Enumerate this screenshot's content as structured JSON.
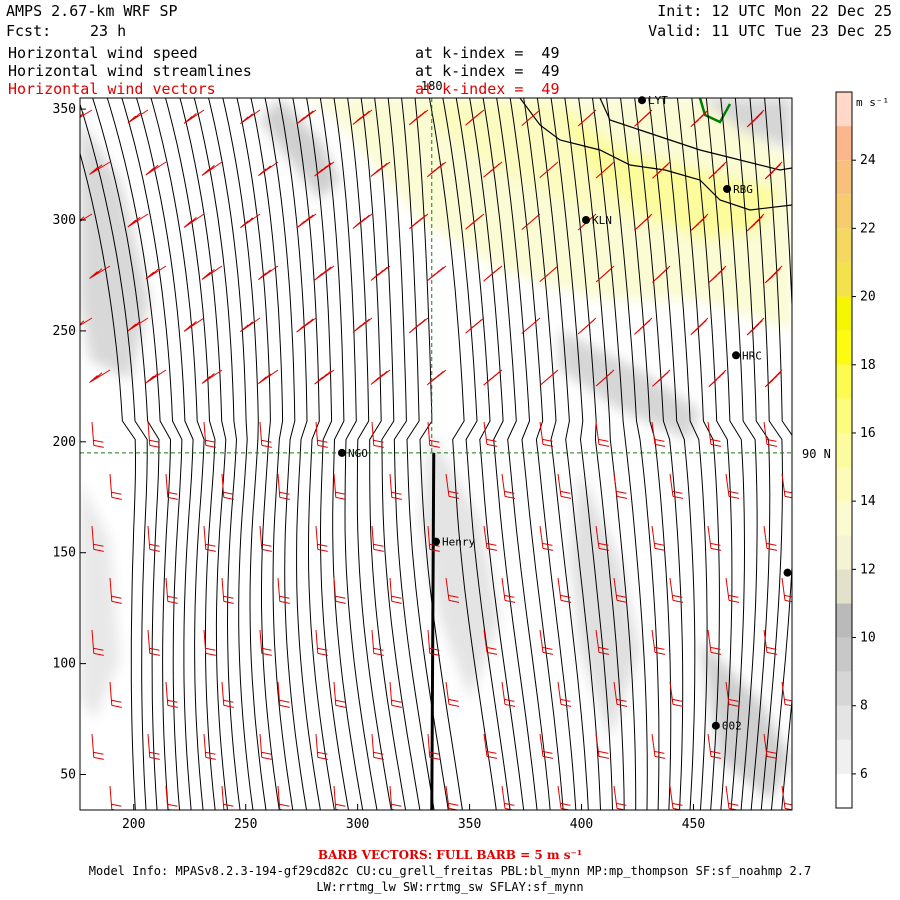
{
  "header": {
    "model": "AMPS 2.67-km WRF SP",
    "fcst_label": "Fcst:",
    "fcst_value": "23 h",
    "init": "Init: 12 UTC Mon 22 Dec 25",
    "valid": "Valid: 11 UTC Tue 23 Dec 25"
  },
  "fields": [
    {
      "name": "Horizontal wind speed",
      "level": "at k-index =  49",
      "color": "#000000"
    },
    {
      "name": "Horizontal wind streamlines",
      "level": "at k-index =  49",
      "color": "#000000"
    },
    {
      "name": "Horizontal wind vectors",
      "level": "at k-index =  49",
      "color": "#e00000"
    }
  ],
  "map": {
    "x_ticks": [
      "200",
      "250",
      "300",
      "350",
      "400",
      "450"
    ],
    "y_ticks": [
      "50",
      "100",
      "150",
      "200",
      "250",
      "300",
      "350"
    ],
    "x_range": [
      176,
      494
    ],
    "y_range": [
      34,
      355
    ],
    "meridian_label": "180",
    "latitude_label": "90 N",
    "pole_y": 195,
    "meridian_x": 334,
    "stations": [
      {
        "name": "LYT",
        "x": 427,
        "y": 354
      },
      {
        "name": "RBG",
        "x": 465,
        "y": 314
      },
      {
        "name": "KLN",
        "x": 402,
        "y": 300
      },
      {
        "name": "HRC",
        "x": 469,
        "y": 239
      },
      {
        "name": "NGO",
        "x": 293,
        "y": 195
      },
      {
        "name": "Henry",
        "x": 335,
        "y": 155
      },
      {
        "name": "",
        "x": 492,
        "y": 141
      },
      {
        "name": "002",
        "x": 460,
        "y": 72
      }
    ]
  },
  "colorbar": {
    "unit": "m s⁻¹",
    "ticks": [
      "6",
      "8",
      "10",
      "12",
      "14",
      "16",
      "18",
      "20",
      "22",
      "24"
    ],
    "levels": [
      5,
      6,
      7,
      8,
      9,
      10,
      11,
      12,
      13,
      14,
      15,
      16,
      17,
      18,
      19,
      20,
      21,
      22,
      23,
      24,
      25,
      26
    ],
    "colors": [
      "#ffffff",
      "#f0f0f0",
      "#e4e4e4",
      "#d6d6d6",
      "#c8c8c8",
      "#bababa",
      "#e2e2ca",
      "#f4f4d4",
      "#fbfbd2",
      "#fcfcb8",
      "#fcfc9e",
      "#fcfc7e",
      "#fcfc50",
      "#fcfc10",
      "#f6f600",
      "#f4e24c",
      "#f4d860",
      "#f6cc6c",
      "#f8c07c",
      "#fbb68c",
      "#ffd8c8"
    ]
  },
  "footer": {
    "barb_note": "BARB VECTORS:  FULL BARB = 5 m s⁻¹",
    "model_info": "Model Info: MPASv8.2.3-194-gf29cd82c CU:cu_grell_freitas PBL:bl_mynn MP:mp_thompson SF:sf_noahmp 2.7",
    "model_info2": "LW:rrtmg_lw SW:rrtmg_sw SFLAY:sf_mynn"
  }
}
